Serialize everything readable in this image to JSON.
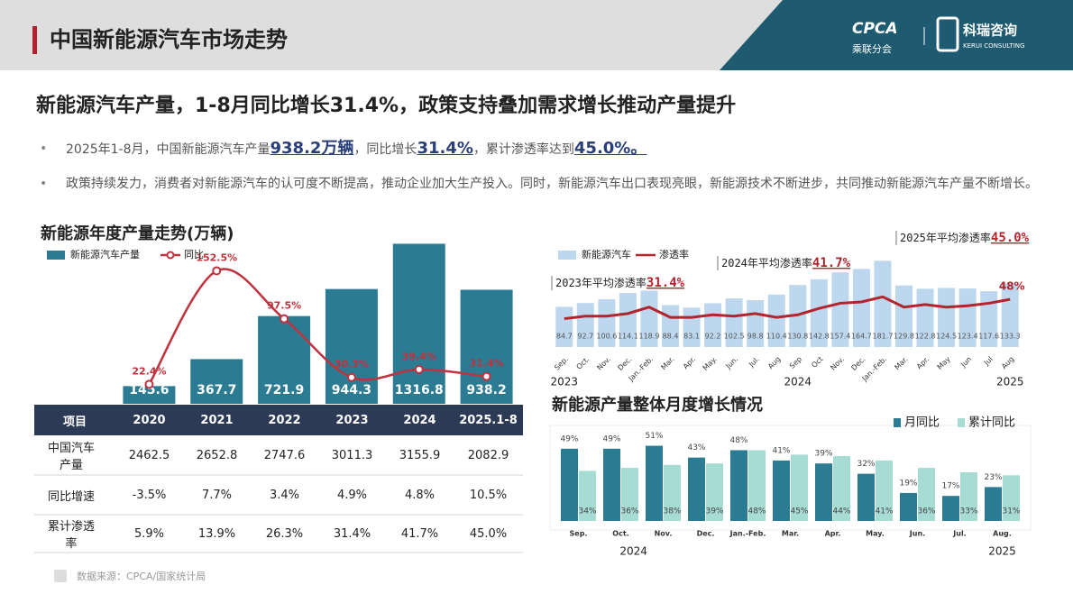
{
  "header": {
    "title": "中国新能源汽车市场走势",
    "logo1": "CPCA",
    "logo1_sub": "乘联分会",
    "logo2": "科瑞咨询",
    "logo2_sub": "KERUI CONSULTING"
  },
  "headline": "新能源汽车产量，1-8月同比增长31.4%，政策支持叠加需求增长推动产量提升",
  "bullets": [
    [
      "2025年1-8月，中国新能源汽车产量",
      "938.2万辆",
      "，同比增长",
      "31.4%",
      "，累计渗透率达到",
      "45.0%。"
    ],
    [
      "政策持续发力，消费者对新能源汽车的认可度不断提高，推动企业加大生产投入。同时，新能源汽车出口表现亮眼，新能源技术不断进步，共同推动新能源汽车产量不断增长。"
    ]
  ],
  "source": "数据来源：CPCA/国家统计局",
  "table": {
    "header": "项目",
    "rows": [
      [
        "中国汽车产量",
        "2462.5",
        "2652.8",
        "2747.6",
        "3011.3",
        "3155.9",
        "2082.9"
      ],
      [
        "同比增速",
        "-3.5%",
        "7.7%",
        "3.4%",
        "4.9%",
        "4.8%",
        "10.5%"
      ],
      [
        "累计渗透率",
        "5.9%",
        "13.9%",
        "26.3%",
        "31.4%",
        "41.7%",
        "45.0%"
      ]
    ]
  },
  "chart_data": [
    {
      "type": "combo",
      "title": "新能源年度产量走势(万辆)",
      "categories": [
        "2020",
        "2021",
        "2022",
        "2023",
        "2024",
        "2025.1-8"
      ],
      "series": [
        {
          "name": "新能源汽车产量",
          "type": "bar",
          "color": "#2b7b93",
          "values": [
            145.6,
            367.7,
            721.9,
            944.3,
            1316.8,
            938.2
          ]
        },
        {
          "name": "同比",
          "type": "line",
          "axis": "y2",
          "color": "#c0323d",
          "values": [
            22.4,
            152.5,
            97.5,
            30.3,
            39.4,
            31.4
          ],
          "value_labels": [
            "22.4%",
            "152.5%",
            "97.5%",
            "30.3%",
            "39.4%",
            "31.4%"
          ]
        }
      ],
      "ylim": [
        0,
        1320
      ],
      "y2lim": [
        0,
        184
      ]
    },
    {
      "type": "combo",
      "categories": [
        "Sep.",
        "Oct.",
        "Nov.",
        "Dec.",
        "Jan.-Feb.",
        "Mar.",
        "Apr.",
        "May.",
        "Jun.",
        "Jul.",
        "Aug",
        "Sep",
        "Oct",
        "Nov.",
        "Dec.",
        "Jan.-Feb.",
        "Mar.",
        "Apr.",
        "May",
        "Jun",
        "Jul",
        "Aug"
      ],
      "year_labels": [
        "2023",
        "2024",
        "2025"
      ],
      "series": [
        {
          "name": "新能源汽车",
          "type": "bar",
          "color": "#bcd7ee",
          "values": [
            84.7,
            92.7,
            100.6,
            114.1,
            118.9,
            88.4,
            83.1,
            92.2,
            102.5,
            98.8,
            110.4,
            130.8,
            142.8,
            157.4,
            164.7,
            181.7,
            129.8,
            122.8,
            124.5,
            123.4,
            117.6,
            133.3
          ]
        },
        {
          "name": "渗透率",
          "type": "line",
          "axis": "y2",
          "color": "#b5232c",
          "values": [
            33,
            35,
            35,
            37,
            42,
            34,
            34,
            36,
            35,
            37,
            34,
            36,
            41,
            45,
            46,
            50,
            42,
            44,
            42,
            43,
            45,
            48
          ],
          "value_labels": [
            null,
            null,
            null,
            null,
            null,
            null,
            null,
            null,
            null,
            null,
            null,
            null,
            null,
            null,
            null,
            null,
            null,
            null,
            null,
            null,
            null,
            "48%"
          ]
        }
      ],
      "annotations": [
        {
          "text": "2023年平均渗透率",
          "value": "31.4%"
        },
        {
          "text": "2024年平均渗透率",
          "value": "41.7%"
        },
        {
          "text": "2025年平均渗透率",
          "value": "45.0%"
        }
      ],
      "ylim": [
        0,
        190
      ],
      "y2lim": [
        11,
        81
      ]
    },
    {
      "type": "bar",
      "title": "新能源产量整体月度增长情况",
      "categories": [
        "Sep.",
        "Oct.",
        "Nov.",
        "Dec.",
        "Jan.-Feb.",
        "Mar.",
        "Apr.",
        "May.",
        "Jun.",
        "Jul.",
        "Aug."
      ],
      "year_labels": [
        "2024",
        "2025"
      ],
      "series": [
        {
          "name": "月同比",
          "color": "#2b7b93",
          "values": [
            49,
            49,
            51,
            43,
            48,
            41,
            39,
            32,
            19,
            17,
            23
          ],
          "value_labels": [
            "49%",
            "49%",
            "51%",
            "43%",
            "48%",
            "41%",
            "39%",
            "32%",
            "19%",
            "17%",
            "23%"
          ]
        },
        {
          "name": "累计同比",
          "color": "#a7dcd5",
          "values": [
            34,
            36,
            38,
            39,
            48,
            45,
            44,
            41,
            36,
            33,
            31
          ],
          "value_labels": [
            "34%",
            "36%",
            "38%",
            "39%",
            "48%",
            "45%",
            "44%",
            "41%",
            "36%",
            "33%",
            "31%"
          ]
        }
      ],
      "ylim": [
        0,
        55
      ]
    }
  ]
}
